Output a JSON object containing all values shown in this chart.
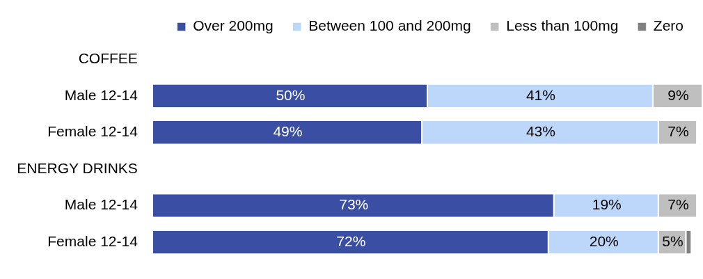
{
  "chart_data": {
    "type": "bar",
    "orientation": "horizontal",
    "stacked": true,
    "categories": [
      "COFFEE",
      "Male 12-14",
      "Female 12-14",
      "ENERGY DRINKS",
      "Male 12-14",
      "Female 12-14"
    ],
    "series": [
      {
        "name": "Over 200mg",
        "color": "#3a4fa3",
        "values": [
          null,
          50,
          49,
          null,
          73,
          72
        ],
        "value_labels": [
          null,
          "50%",
          "49%",
          null,
          "73%",
          "72%"
        ]
      },
      {
        "name": "Between 100 and 200mg",
        "color": "#bdd7fb",
        "values": [
          null,
          41,
          43,
          null,
          19,
          20
        ],
        "value_labels": [
          null,
          "41%",
          "43%",
          null,
          "19%",
          "20%"
        ]
      },
      {
        "name": "Less than 100mg",
        "color": "#bfbfbf",
        "values": [
          null,
          9,
          7,
          null,
          7,
          5
        ],
        "value_labels": [
          null,
          "9%",
          "7%",
          null,
          "7%",
          "5%"
        ]
      },
      {
        "name": "Zero",
        "color": "#808080",
        "values": [
          null,
          null,
          null,
          null,
          null,
          1
        ]
      }
    ],
    "xlim": [
      0,
      100
    ],
    "tick_labels": "y",
    "legend": "top right"
  }
}
